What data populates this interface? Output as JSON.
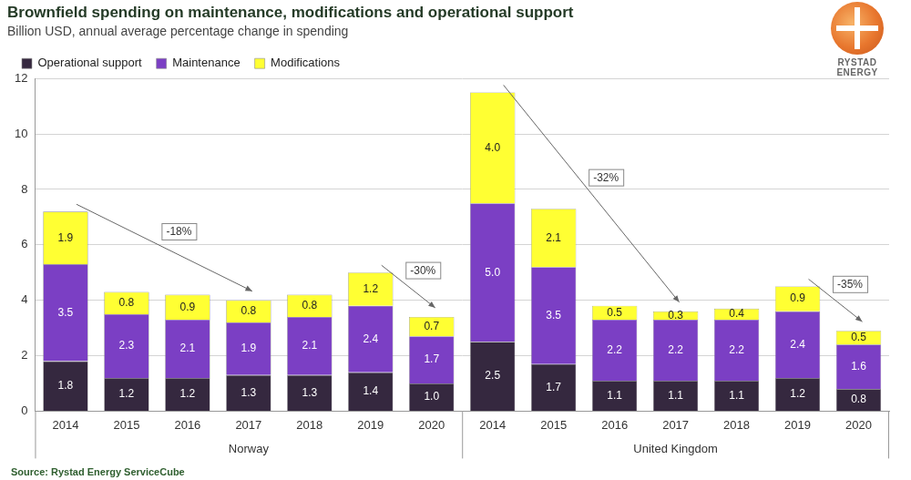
{
  "chart_data": {
    "type": "bar",
    "title": "Brownfield spending on maintenance, modifications and operational support",
    "subtitle": "Billion USD, annual average percentage change in spending",
    "categories": [
      "2014",
      "2015",
      "2016",
      "2017",
      "2018",
      "2019",
      "2020",
      "2014",
      "2015",
      "2016",
      "2017",
      "2018",
      "2019",
      "2020"
    ],
    "category_groups": [
      {
        "name": "Norway",
        "count": 7
      },
      {
        "name": "United Kingdom",
        "count": 7
      }
    ],
    "series": [
      {
        "name": "Operational support",
        "color": "#35283f",
        "values": [
          1.8,
          1.2,
          1.2,
          1.3,
          1.3,
          1.4,
          1.0,
          2.5,
          1.7,
          1.1,
          1.1,
          1.1,
          1.2,
          0.8
        ],
        "value_labels": [
          "1.8",
          "1.2",
          "1.2",
          "1.3",
          "1.3",
          "1.4",
          "1.0",
          "2.5",
          "1.7",
          "1.1",
          "1.1",
          "1.1",
          "1.2",
          "0.8"
        ]
      },
      {
        "name": "Maintenance",
        "color": "#7b3fc4",
        "values": [
          3.5,
          2.3,
          2.1,
          1.9,
          2.1,
          2.4,
          1.7,
          5.0,
          3.5,
          2.2,
          2.2,
          2.2,
          2.4,
          1.6
        ],
        "value_labels": [
          "3.5",
          "2.3",
          "2.1",
          "1.9",
          "2.1",
          "2.4",
          "1.7",
          "5.0",
          "3.5",
          "2.2",
          "2.2",
          "2.2",
          "2.4",
          "1.6"
        ]
      },
      {
        "name": "Modifications",
        "color": "#ffff33",
        "values": [
          1.9,
          0.8,
          0.9,
          0.8,
          0.8,
          1.2,
          0.7,
          4.0,
          2.1,
          0.5,
          0.3,
          0.4,
          0.9,
          0.5
        ],
        "value_labels": [
          "1.9",
          "0.8",
          "0.9",
          "0.8",
          "0.8",
          "1.2",
          "0.7",
          "4.0",
          "2.1",
          "0.5",
          "0.3",
          "0.4",
          "0.9",
          "0.5"
        ]
      }
    ],
    "stacked": true,
    "data_labels": true,
    "legend": "top-left",
    "grid": true,
    "ylim": [
      0,
      12
    ],
    "yticks": [
      0,
      2,
      4,
      6,
      8,
      10,
      12
    ],
    "annotations": [
      {
        "text": "-18%",
        "from": 0,
        "to": 3
      },
      {
        "text": "-30%",
        "from": 5,
        "to": 6
      },
      {
        "text": "-32%",
        "from": 7,
        "to": 10
      },
      {
        "text": "-35%",
        "from": 12,
        "to": 13
      }
    ],
    "source": "Source: Rystad Energy ServiceCube",
    "logo_text": "RYSTAD ENERGY"
  }
}
